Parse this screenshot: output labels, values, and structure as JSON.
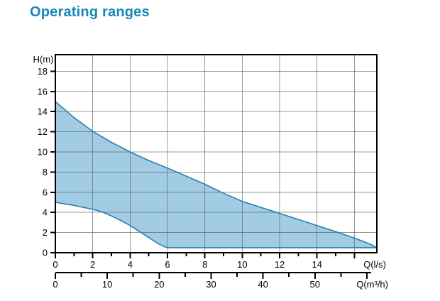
{
  "header": {
    "title": "Operating ranges"
  },
  "colors": {
    "title": "#1786b9",
    "background": "#ffffff",
    "area_fill": "#a2cce3",
    "area_stroke": "#2b7eaf",
    "grid": "#555555",
    "axis": "#000000",
    "tick_label": "#000000"
  },
  "chart_data": {
    "type": "area",
    "title": "Operating ranges",
    "ylabel": "H(m)",
    "xlabel_primary": "Q(l/s)",
    "xlabel_secondary": "Q(m³/h)",
    "ylim": [
      0,
      19.65
    ],
    "xlim_ls": [
      0,
      17.2
    ],
    "grid": {
      "x_values_ls": [
        2,
        4,
        6,
        8,
        10,
        12,
        14,
        16
      ],
      "y_values": [
        2,
        4,
        6,
        8,
        10,
        12,
        14,
        16,
        18
      ]
    },
    "y_axis": {
      "label": "H(m)",
      "major_ticks": [
        0,
        2,
        4,
        6,
        8,
        10,
        12,
        14,
        16,
        18
      ]
    },
    "x_axis_primary": {
      "label": "Q(l/s)",
      "labeled_ticks": [
        0,
        2,
        4,
        6,
        8,
        10,
        12,
        14
      ],
      "minor_ticks": [
        1,
        3,
        5,
        7,
        9,
        11,
        13,
        15
      ],
      "unlabeled_major_ticks": [
        16
      ]
    },
    "x_axis_secondary": {
      "label": "Q(m³/h)",
      "units_per_ls": 3.6,
      "labeled_ticks": [
        0,
        10,
        20,
        30,
        40,
        50
      ],
      "minor_ticks": [
        5,
        15,
        25,
        35,
        45,
        55
      ],
      "unlabeled_major_ticks": [
        60
      ]
    },
    "series": [
      {
        "name": "operating-range-envelope",
        "upper": [
          [
            0,
            15.0
          ],
          [
            1,
            13.4
          ],
          [
            2,
            12.05
          ],
          [
            3,
            10.95
          ],
          [
            4,
            10.0
          ],
          [
            5,
            9.15
          ],
          [
            6,
            8.4
          ],
          [
            7,
            7.6
          ],
          [
            8,
            6.8
          ],
          [
            9,
            5.9
          ],
          [
            10,
            5.1
          ],
          [
            11,
            4.5
          ],
          [
            12,
            3.9
          ],
          [
            13,
            3.3
          ],
          [
            14,
            2.7
          ],
          [
            15,
            2.1
          ],
          [
            16,
            1.45
          ],
          [
            16.5,
            1.1
          ],
          [
            16.9,
            0.8
          ],
          [
            17.15,
            0.55
          ],
          [
            17.2,
            0.5
          ]
        ],
        "lower": [
          [
            0,
            5.0
          ],
          [
            1,
            4.7
          ],
          [
            2,
            4.3
          ],
          [
            2.5,
            4.05
          ],
          [
            3,
            3.65
          ],
          [
            3.5,
            3.2
          ],
          [
            4,
            2.7
          ],
          [
            4.5,
            2.1
          ],
          [
            5,
            1.5
          ],
          [
            5.5,
            0.9
          ],
          [
            5.8,
            0.62
          ],
          [
            6.0,
            0.5
          ],
          [
            17.2,
            0.5
          ]
        ]
      }
    ]
  }
}
